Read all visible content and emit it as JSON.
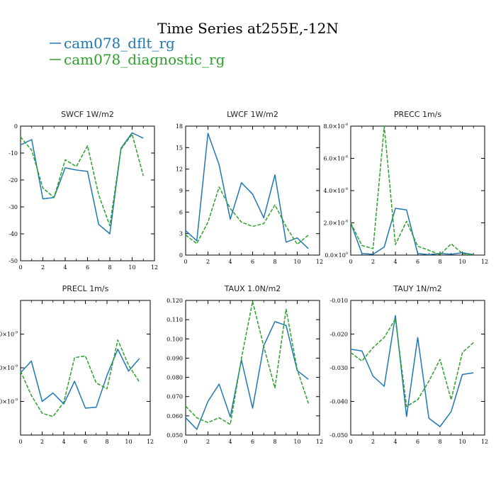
{
  "title": "Time Series at255E,-12N",
  "colors": {
    "blue": "#1f77b4",
    "green": "#2ca02c"
  },
  "legend": [
    {
      "label": "cam078_dflt_rg",
      "color": "#1f77b4",
      "dash": "solid"
    },
    {
      "label": "cam078_diagnostic_rg",
      "color": "#2ca02c",
      "dash": "dashed"
    }
  ],
  "chart_data": [
    {
      "type": "line",
      "title": "SWCF   1W/m2",
      "xlim": [
        0,
        12
      ],
      "ylim": [
        -50,
        0
      ],
      "xticks": [
        0,
        2,
        4,
        6,
        8,
        10,
        12
      ],
      "xtick_labels": [
        "0",
        "2",
        "4",
        "6",
        "8",
        "10",
        "12"
      ],
      "yticks": [
        -50,
        -40,
        -30,
        -20,
        -10,
        0
      ],
      "ytick_labels": [
        "-50",
        "-40",
        "-30",
        "-20",
        "-10",
        "0"
      ],
      "x": [
        0,
        1,
        2,
        3,
        4,
        5,
        6,
        7,
        8,
        9,
        10,
        11
      ],
      "series": [
        {
          "name": "cam078_dflt_rg",
          "values": [
            -7,
            -5,
            -27,
            -26.5,
            -15.5,
            -16.3,
            -16.8,
            -36.5,
            -40,
            -8.2,
            -2.5,
            -4.5
          ]
        },
        {
          "name": "cam078_diagnostic_rg",
          "values": [
            -4,
            -9,
            -23,
            -26.5,
            -12.5,
            -15,
            -7.3,
            -25.5,
            -37,
            -8.5,
            -3,
            -18.5
          ]
        }
      ]
    },
    {
      "type": "line",
      "title": "LWCF   1W/m2",
      "xlim": [
        0,
        12
      ],
      "ylim": [
        0,
        18
      ],
      "xticks": [
        0,
        2,
        4,
        6,
        8,
        10,
        12
      ],
      "xtick_labels": [
        "0",
        "2",
        "4",
        "6",
        "8",
        "10",
        "12"
      ],
      "yticks": [
        0,
        3,
        6,
        9,
        12,
        15,
        18
      ],
      "ytick_labels": [
        "0",
        "3",
        "6",
        "9",
        "12",
        "15",
        "18"
      ],
      "x": [
        0,
        1,
        2,
        3,
        4,
        5,
        6,
        7,
        8,
        9,
        10,
        11
      ],
      "series": [
        {
          "name": "cam078_dflt_rg",
          "values": [
            3.4,
            2,
            17,
            12.6,
            5,
            10.1,
            8.5,
            5.2,
            11.2,
            1.8,
            2.4,
            0.9
          ]
        },
        {
          "name": "cam078_diagnostic_rg",
          "values": [
            2.8,
            1.6,
            4.6,
            9.5,
            6.5,
            4.6,
            4,
            4.4,
            7,
            4,
            1.5,
            2.8
          ]
        }
      ]
    },
    {
      "type": "line",
      "title": "PRECC   1m/s",
      "xlim": [
        0,
        12
      ],
      "ylim": [
        0,
        8e-08
      ],
      "xticks": [
        0,
        2,
        4,
        6,
        8,
        10,
        12
      ],
      "xtick_labels": [
        "0",
        "2",
        "4",
        "6",
        "8",
        "10",
        "12"
      ],
      "yticks": [
        0,
        2e-08,
        4e-08,
        6e-08,
        8e-08
      ],
      "ytick_labels": [
        {
          "base": "0.0×10",
          "exp": "0"
        },
        {
          "base": "2.0×10",
          "exp": "-8"
        },
        {
          "base": "4.0×10",
          "exp": "-8"
        },
        {
          "base": "6.0×10",
          "exp": "-8"
        },
        {
          "base": "8.0×10",
          "exp": "-8"
        }
      ],
      "x": [
        0,
        1,
        2,
        3,
        4,
        5,
        6,
        7,
        8,
        9,
        10,
        11
      ],
      "series": [
        {
          "name": "cam078_dflt_rg",
          "values": [
            2e-08,
            1e-09,
            5e-10,
            5e-09,
            2.9e-08,
            2.8e-08,
            1e-09,
            3e-10,
            1e-09,
            5e-10,
            1.5e-09,
            3e-10
          ]
        },
        {
          "name": "cam078_diagnostic_rg",
          "values": [
            2e-08,
            6e-09,
            4e-09,
            8e-08,
            6.5e-09,
            2.1e-08,
            5.5e-09,
            3e-09,
            2.5e-10,
            7e-09,
            1e-09,
            0
          ]
        }
      ]
    },
    {
      "type": "line",
      "title": "PRECL   1m/s",
      "xlim": [
        0,
        12
      ],
      "ylim": [
        0,
        1.6
      ],
      "xticks": [
        0,
        2,
        4,
        6,
        8,
        10,
        12
      ],
      "xtick_labels": [
        "0",
        "2",
        "4",
        "6",
        "8",
        "10",
        "12"
      ],
      "yticks": [
        0.4,
        0.8,
        1.2
      ],
      "ytick_labels": [
        {
          "base": "0×10",
          "exp": "-9"
        },
        {
          "base": "0×10",
          "exp": "-9"
        },
        {
          "base": "0×10",
          "exp": "-9"
        }
      ],
      "x": [
        0,
        1,
        2,
        3,
        4,
        5,
        6,
        7,
        8,
        9,
        10,
        11
      ],
      "series": [
        {
          "name": "cam078_dflt_rg",
          "values": [
            0.74,
            0.88,
            0.4,
            0.5,
            0.37,
            0.64,
            0.32,
            0.33,
            0.71,
            1.02,
            0.76,
            0.91
          ]
        },
        {
          "name": "cam078_diagnostic_rg",
          "values": [
            0.76,
            0.47,
            0.26,
            0.22,
            0.39,
            0.92,
            0.94,
            0.62,
            0.55,
            1.13,
            0.83,
            0.63
          ]
        }
      ]
    },
    {
      "type": "line",
      "title": "TAUX   1.0N/m2",
      "xlim": [
        0,
        12
      ],
      "ylim": [
        0.05,
        0.12
      ],
      "xticks": [
        0,
        2,
        4,
        6,
        8,
        10,
        12
      ],
      "xtick_labels": [
        "0",
        "2",
        "4",
        "6",
        "8",
        "10",
        "12"
      ],
      "yticks": [
        0.05,
        0.06,
        0.07,
        0.08,
        0.09,
        0.1,
        0.11,
        0.12
      ],
      "ytick_labels": [
        "0.050",
        "0.060",
        "0.070",
        "0.080",
        "0.090",
        "0.100",
        "0.110",
        "0.120"
      ],
      "x": [
        0,
        1,
        2,
        3,
        4,
        5,
        6,
        7,
        8,
        9,
        10,
        11
      ],
      "series": [
        {
          "name": "cam078_dflt_rg",
          "values": [
            0.059,
            0.053,
            0.0675,
            0.0765,
            0.0595,
            0.089,
            0.064,
            0.0965,
            0.109,
            0.107,
            0.0835,
            0.079
          ]
        },
        {
          "name": "cam078_diagnostic_rg",
          "values": [
            0.065,
            0.059,
            0.0565,
            0.059,
            0.0555,
            0.09,
            0.1195,
            0.096,
            0.0745,
            0.1155,
            0.084,
            0.0665
          ]
        }
      ]
    },
    {
      "type": "line",
      "title": "TAUY   1N/m2",
      "xlim": [
        0,
        12
      ],
      "ylim": [
        -0.05,
        -0.01
      ],
      "xticks": [
        0,
        2,
        4,
        6,
        8,
        10,
        12
      ],
      "xtick_labels": [
        "0",
        "2",
        "4",
        "6",
        "8",
        "10",
        "12"
      ],
      "yticks": [
        -0.05,
        -0.04,
        -0.03,
        -0.02,
        -0.01
      ],
      "ytick_labels": [
        "-0.050",
        "-0.040",
        "-0.030",
        "-0.020",
        "-0.010"
      ],
      "x": [
        0,
        1,
        2,
        3,
        4,
        5,
        6,
        7,
        8,
        9,
        10,
        11
      ],
      "series": [
        {
          "name": "cam078_dflt_rg",
          "values": [
            -0.0245,
            -0.025,
            -0.0325,
            -0.0355,
            -0.0145,
            -0.0445,
            -0.021,
            -0.045,
            -0.0475,
            -0.043,
            -0.032,
            -0.0315
          ]
        },
        {
          "name": "cam078_diagnostic_rg",
          "values": [
            -0.0255,
            -0.028,
            -0.024,
            -0.021,
            -0.0155,
            -0.0415,
            -0.0395,
            -0.034,
            -0.0275,
            -0.0395,
            -0.0255,
            -0.0225
          ]
        }
      ]
    }
  ]
}
